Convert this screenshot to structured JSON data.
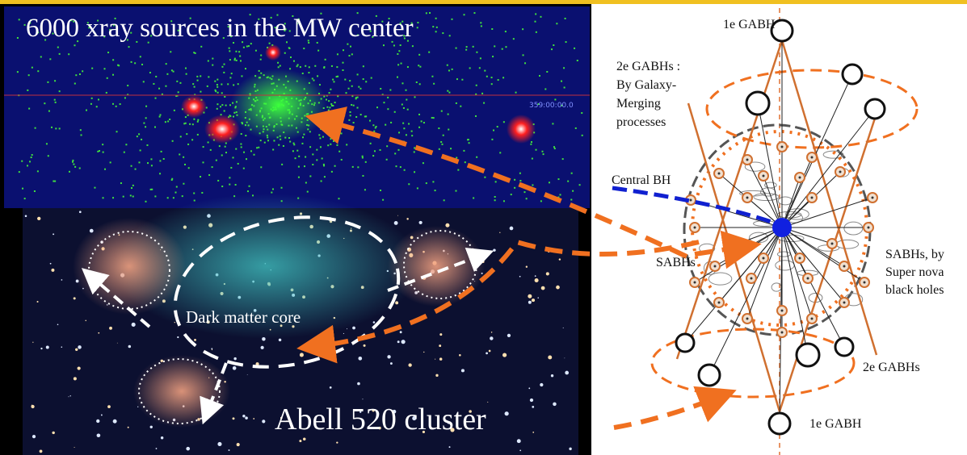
{
  "left_top": {
    "title": "6000 xray sources in the MW center",
    "coord_label": "359:00:00.0"
  },
  "left_bottom": {
    "title": "Abell 520 cluster",
    "label": "Dark matter core"
  },
  "diagram": {
    "top_label": "1e GABH",
    "upper_group_label": [
      "2e GABHs :",
      "By Galaxy-",
      "Merging",
      "processes"
    ],
    "central_label": "Central BH",
    "sabh_left": "SABHs",
    "sabh_right": [
      "SABHs, by",
      "Super nova",
      "black holes"
    ],
    "lower_group_label": "2e GABHs",
    "bottom_label": "1e GABH"
  }
}
